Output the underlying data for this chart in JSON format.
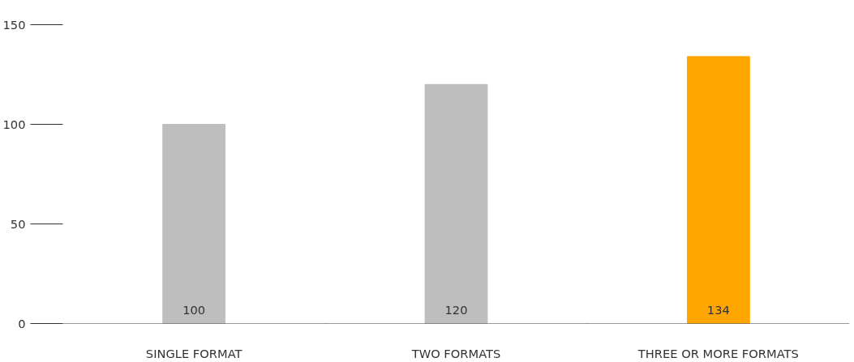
{
  "chart_data": {
    "type": "bar",
    "categories": [
      "SINGLE FORMAT",
      "TWO FORMATS",
      "THREE OR MORE FORMATS"
    ],
    "values": [
      100,
      120,
      134
    ],
    "colors": [
      "#bebebe",
      "#bebebe",
      "#ffa500"
    ],
    "ylim": [
      0,
      150
    ],
    "yticks": [
      0,
      50,
      100,
      150
    ],
    "value_labels": [
      "100",
      "120",
      "134"
    ]
  }
}
